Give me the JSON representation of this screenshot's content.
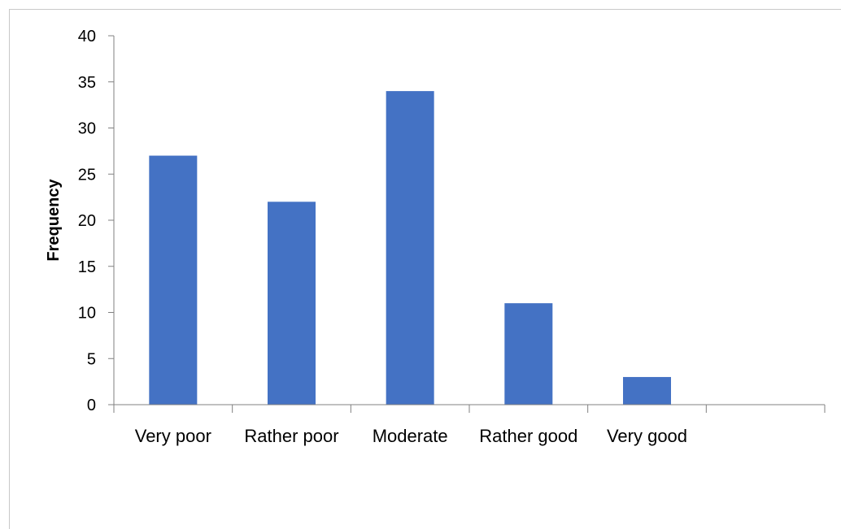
{
  "chart_data": {
    "type": "bar",
    "title": "",
    "xlabel": "",
    "ylabel": "Frequency",
    "categories": [
      "Very poor",
      "Rather poor",
      "Moderate",
      "Rather good",
      "Very good"
    ],
    "values": [
      27,
      22,
      34,
      11,
      3
    ],
    "ylim": [
      0,
      40
    ],
    "yticks": [
      0,
      5,
      10,
      15,
      20,
      25,
      30,
      35,
      40
    ],
    "grid": false,
    "legend": "none",
    "bar_color": "#4472C4",
    "axis_color": "#808080"
  }
}
